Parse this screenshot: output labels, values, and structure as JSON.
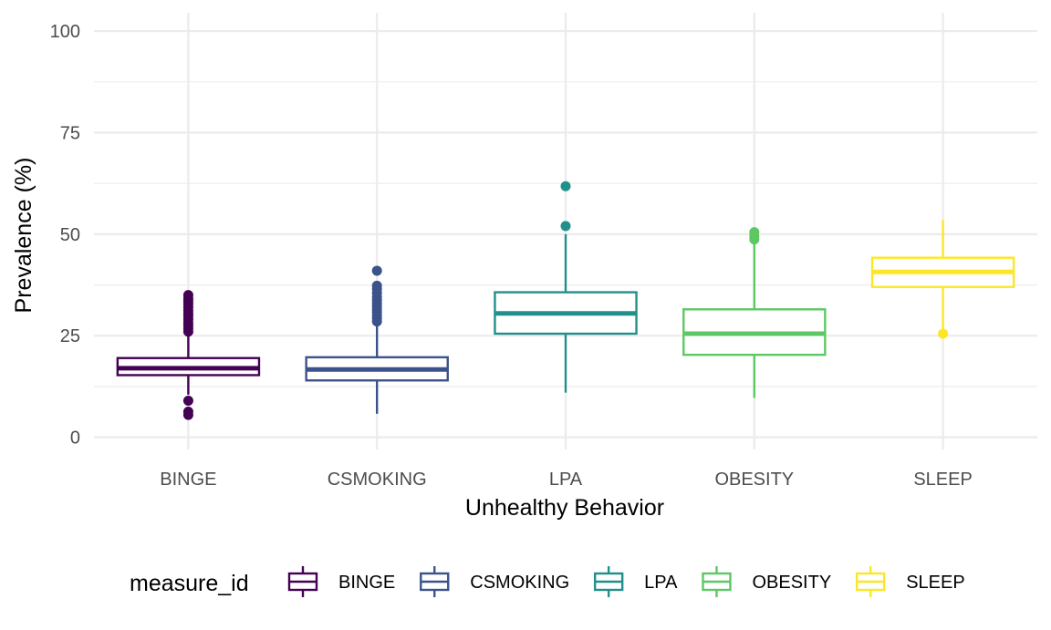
{
  "chart_data": {
    "type": "boxplot",
    "xlabel": "Unhealthy Behavior",
    "ylabel": "Prevalence (%)",
    "ylim": [
      0,
      100
    ],
    "yticks": [
      0,
      25,
      50,
      75,
      100
    ],
    "grid": true,
    "legend": {
      "title": "measure_id",
      "position": "bottom"
    },
    "categories": [
      "BINGE",
      "CSMOKING",
      "LPA",
      "OBESITY",
      "SLEEP"
    ],
    "series": [
      {
        "name": "BINGE",
        "color": "#440154",
        "whisker_low": 10.5,
        "q1": 15.3,
        "median": 17.0,
        "q3": 19.5,
        "whisker_high": 25.5,
        "outliers": [
          5.5,
          6.3,
          9.0,
          26.0,
          26.8,
          27.5,
          28.2,
          29.0,
          29.8,
          30.5,
          31.2,
          32.0,
          32.8,
          33.5,
          34.2,
          35.0
        ]
      },
      {
        "name": "CSMOKING",
        "color": "#3b528b",
        "whisker_low": 5.8,
        "q1": 14.0,
        "median": 16.7,
        "q3": 19.7,
        "whisker_high": 28.0,
        "outliers": [
          28.5,
          29.3,
          30.0,
          30.8,
          31.5,
          32.3,
          33.0,
          33.8,
          34.5,
          35.5,
          36.5,
          37.3,
          41.0
        ]
      },
      {
        "name": "LPA",
        "color": "#21908c",
        "whisker_low": 11.0,
        "q1": 25.5,
        "median": 30.5,
        "q3": 35.7,
        "whisker_high": 50.0,
        "outliers": [
          52.0,
          61.8
        ]
      },
      {
        "name": "OBESITY",
        "color": "#5dc863",
        "whisker_low": 9.7,
        "q1": 20.3,
        "median": 25.5,
        "q3": 31.5,
        "whisker_high": 48.0,
        "outliers": [
          48.7,
          49.5,
          50.5
        ]
      },
      {
        "name": "SLEEP",
        "color": "#fde725",
        "whisker_low": 26.5,
        "q1": 37.0,
        "median": 40.7,
        "q3": 44.2,
        "whisker_high": 53.5,
        "outliers": [
          25.5
        ]
      }
    ]
  }
}
